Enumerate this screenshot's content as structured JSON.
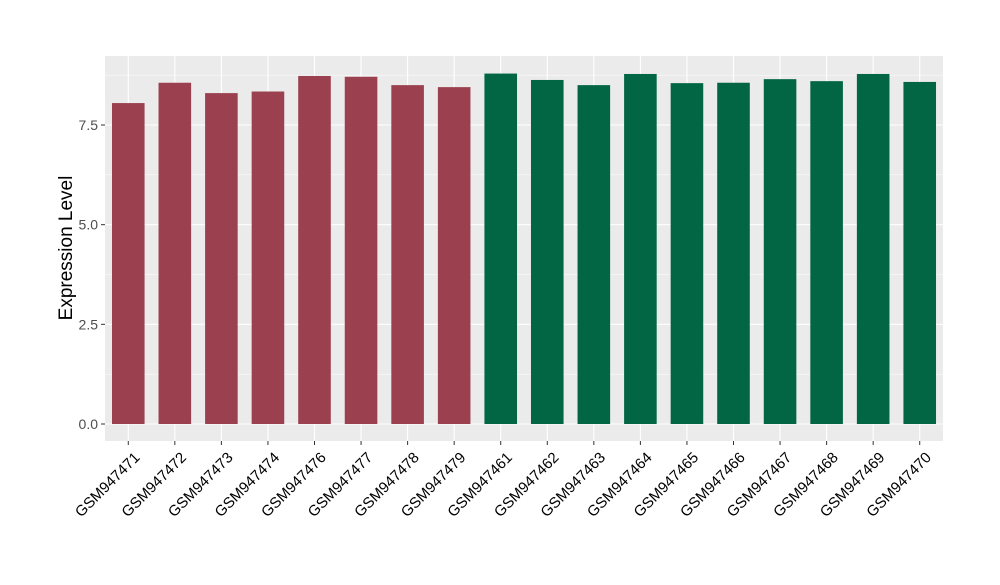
{
  "chart_data": {
    "type": "bar",
    "title": "",
    "xlabel": "",
    "ylabel": "Expression Level",
    "ylim": [
      0,
      8.75
    ],
    "yticks": [
      0.0,
      2.5,
      5.0,
      7.5
    ],
    "ytick_labels": [
      "0.0",
      "2.5",
      "5.0",
      "7.5"
    ],
    "grid": true,
    "legend": "none",
    "categories": [
      "GSM947471",
      "GSM947472",
      "GSM947473",
      "GSM947474",
      "GSM947476",
      "GSM947477",
      "GSM947478",
      "GSM947479",
      "GSM947461",
      "GSM947462",
      "GSM947463",
      "GSM947464",
      "GSM947465",
      "GSM947466",
      "GSM947467",
      "GSM947468",
      "GSM947469",
      "GSM947470"
    ],
    "values": [
      8.05,
      8.56,
      8.3,
      8.34,
      8.73,
      8.71,
      8.5,
      8.45,
      8.79,
      8.63,
      8.5,
      8.78,
      8.55,
      8.56,
      8.65,
      8.6,
      8.78,
      8.58
    ],
    "groups": [
      "a",
      "a",
      "a",
      "a",
      "a",
      "a",
      "a",
      "a",
      "b",
      "b",
      "b",
      "b",
      "b",
      "b",
      "b",
      "b",
      "b",
      "b"
    ],
    "group_colors": {
      "a": "#9A404E",
      "b": "#026645"
    },
    "panel_background": "#EBEBEB",
    "grid_color": "#FFFFFF"
  }
}
